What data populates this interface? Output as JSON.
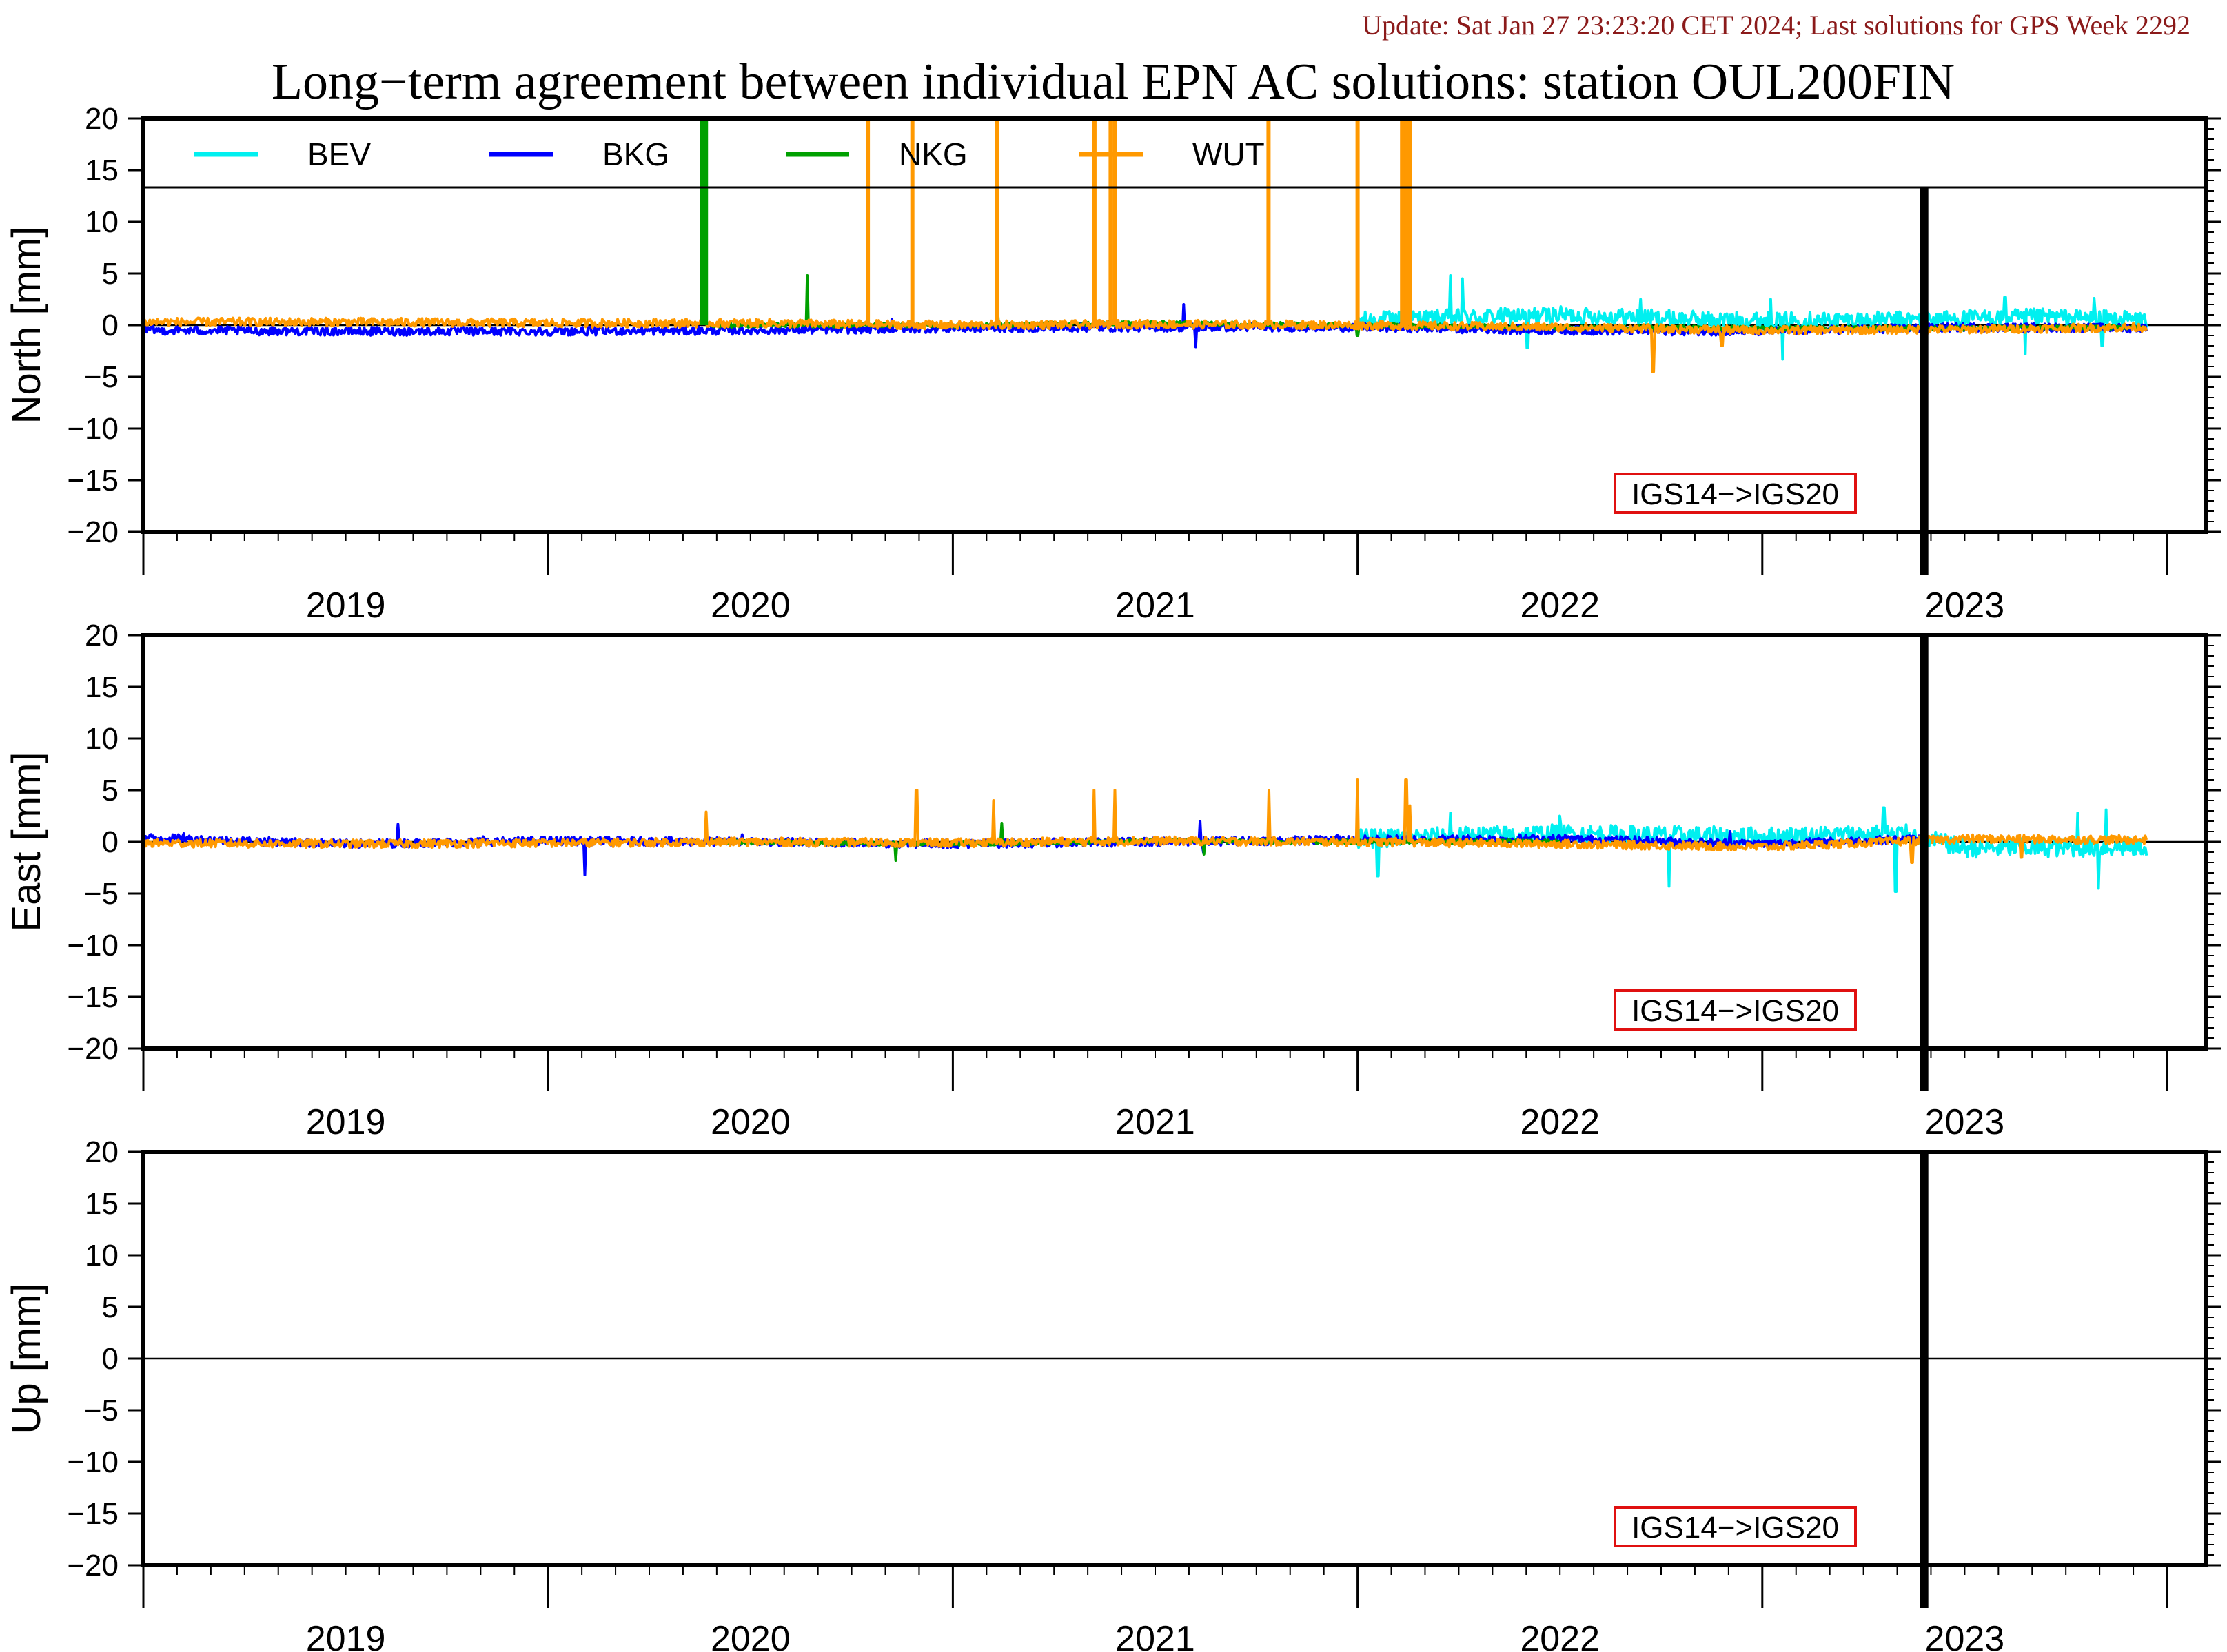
{
  "header": {
    "update": "Update: Sat Jan 27 23:23:20 CET 2024; Last solutions for GPS Week 2292",
    "title": "Long−term agreement between individual EPN AC solutions: station OUL200FIN"
  },
  "chart_data": [
    {
      "type": "line",
      "panel": "north",
      "ylabel": "North [mm]",
      "ylim": [
        -20,
        20
      ],
      "yticks": [
        20,
        15,
        10,
        5,
        0,
        -5,
        -10,
        -15,
        -20
      ],
      "ytick_labels": [
        "20",
        "15",
        "10",
        "5",
        "0",
        "−5",
        "−10",
        "−15",
        "−20"
      ],
      "xlim": [
        2018.5,
        2023.5
      ],
      "x_year_labels": [
        "2019",
        "2020",
        "2021",
        "2022",
        "2023"
      ],
      "zero_line": true,
      "reference_frame_change": {
        "x": 2022.9,
        "label": "IGS14−>IGS20"
      },
      "legend": {
        "placement": "top-left, inside plot, single row",
        "entries": [
          "BEV",
          "BKG",
          "NKG",
          "WUT"
        ]
      },
      "series": [
        {
          "name": "BEV",
          "color": "#00f0f0",
          "noise": 0.8,
          "x": [
            2021.5,
            2022.0,
            2022.4,
            2022.8,
            2023.2,
            2023.45
          ],
          "y": [
            0.5,
            1.0,
            0.5,
            0.5,
            0.8,
            0.5
          ],
          "spikes": [
            [
              2021.73,
              4.8
            ],
            [
              2021.76,
              4.5
            ],
            [
              2021.92,
              -2.2
            ],
            [
              2022.2,
              2.5
            ],
            [
              2022.52,
              2.5
            ],
            [
              2022.55,
              -3.3
            ],
            [
              2023.1,
              2.7
            ],
            [
              2023.15,
              -2.8
            ],
            [
              2023.32,
              2.6
            ],
            [
              2023.34,
              -2.0
            ]
          ]
        },
        {
          "name": "BKG",
          "color": "#0000ff",
          "noise": 0.4,
          "x": [
            2018.5,
            2019.0,
            2019.5,
            2020.0,
            2020.5,
            2021.0,
            2021.5,
            2022.0,
            2022.5,
            2023.0,
            2023.45
          ],
          "y": [
            -0.5,
            -0.6,
            -0.6,
            -0.5,
            -0.3,
            -0.2,
            -0.2,
            -0.5,
            -0.6,
            -0.2,
            -0.3
          ],
          "spikes": [
            [
              2020.35,
              0.6
            ],
            [
              2021.07,
              2.0
            ],
            [
              2021.1,
              -2.1
            ],
            [
              2022.9,
              2.5
            ]
          ]
        },
        {
          "name": "NKG",
          "color": "#00a000",
          "noise": 0.2,
          "x": [
            2019.9,
            2020.5,
            2021.0,
            2021.5,
            2022.0,
            2022.5,
            2023.0,
            2023.45
          ],
          "y": [
            0.0,
            0.0,
            0.2,
            0.0,
            -0.2,
            -0.3,
            -0.3,
            -0.2
          ],
          "spikes": [
            [
              2020.14,
              4.8
            ],
            [
              2020.61,
              1.8
            ],
            [
              2021.5,
              -1.0
            ]
          ]
        },
        {
          "name": "WUT",
          "color": "#ff9900",
          "noise": 0.4,
          "x": [
            2018.5,
            2019.0,
            2019.5,
            2020.0,
            2020.5,
            2021.0,
            2021.5,
            2022.0,
            2022.5,
            2023.0,
            2023.45
          ],
          "y": [
            0.3,
            0.3,
            0.2,
            0.2,
            0.0,
            0.1,
            0.0,
            -0.2,
            -0.5,
            -0.4,
            -0.2
          ],
          "spikes": [
            [
              2022.23,
              -4.5
            ],
            [
              2022.4,
              -2.0
            ]
          ]
        }
      ],
      "outliers": [
        {
          "series": "NKG",
          "x": 2019.88
        },
        {
          "series": "NKG",
          "x": 2019.89
        },
        {
          "series": "WUT",
          "x": 2020.29
        },
        {
          "series": "WUT",
          "x": 2020.4
        },
        {
          "series": "WUT",
          "x": 2020.61
        },
        {
          "series": "WUT",
          "x": 2020.85
        },
        {
          "series": "WUT",
          "x": 2020.89
        },
        {
          "series": "WUT",
          "x": 2020.9
        },
        {
          "series": "WUT",
          "x": 2021.28
        },
        {
          "series": "WUT",
          "x": 2021.5
        },
        {
          "series": "WUT",
          "x": 2021.61
        },
        {
          "series": "WUT",
          "x": 2021.615
        },
        {
          "series": "WUT",
          "x": 2021.62
        },
        {
          "series": "WUT",
          "x": 2021.625
        },
        {
          "series": "WUT",
          "x": 2021.63
        }
      ]
    },
    {
      "type": "line",
      "panel": "east",
      "ylabel": "East [mm]",
      "ylim": [
        -20,
        20
      ],
      "yticks": [
        20,
        15,
        10,
        5,
        0,
        -5,
        -10,
        -15,
        -20
      ],
      "ytick_labels": [
        "20",
        "15",
        "10",
        "5",
        "0",
        "−5",
        "−10",
        "−15",
        "−20"
      ],
      "xlim": [
        2018.5,
        2023.5
      ],
      "x_year_labels": [
        "2019",
        "2020",
        "2021",
        "2022",
        "2023"
      ],
      "zero_line": true,
      "reference_frame_change": {
        "x": 2022.9,
        "label": "IGS14−>IGS20"
      },
      "series": [
        {
          "name": "BEV",
          "color": "#00f0f0",
          "noise": 0.9,
          "x": [
            2021.5,
            2022.0,
            2022.5,
            2022.85,
            2023.0,
            2023.45
          ],
          "y": [
            0.3,
            0.8,
            0.5,
            0.8,
            -0.6,
            -0.5
          ],
          "spikes": [
            [
              2021.55,
              -3.3
            ],
            [
              2021.73,
              2.8
            ],
            [
              2022.0,
              2.5
            ],
            [
              2022.27,
              -4.3
            ],
            [
              2022.8,
              3.3
            ],
            [
              2022.83,
              -4.8
            ],
            [
              2023.28,
              2.8
            ],
            [
              2023.35,
              3.1
            ],
            [
              2023.33,
              -4.5
            ]
          ]
        },
        {
          "name": "BKG",
          "color": "#0000ff",
          "noise": 0.4,
          "x": [
            2018.5,
            2019.0,
            2019.5,
            2020.0,
            2020.5,
            2021.0,
            2021.5,
            2022.0,
            2022.5,
            2022.9
          ],
          "y": [
            0.4,
            -0.2,
            0.1,
            0.0,
            -0.2,
            0.0,
            0.2,
            0.3,
            -0.2,
            0.3
          ],
          "spikes": [
            [
              2018.6,
              0.8
            ],
            [
              2019.13,
              1.7
            ],
            [
              2019.34,
              0.5
            ],
            [
              2019.59,
              -3.2
            ],
            [
              2019.98,
              0.7
            ],
            [
              2021.11,
              2.0
            ],
            [
              2021.12,
              -1.0
            ],
            [
              2021.45,
              0.6
            ],
            [
              2022.42,
              1.0
            ]
          ]
        },
        {
          "name": "NKG",
          "color": "#00a000",
          "noise": 0.2,
          "x": [
            2019.9,
            2020.5,
            2021.0,
            2021.5,
            2022.0
          ],
          "y": [
            0.0,
            -0.2,
            0.1,
            0.0,
            0.0
          ],
          "spikes": [
            [
              2020.36,
              -1.8
            ],
            [
              2020.62,
              1.8
            ],
            [
              2021.12,
              -1.2
            ]
          ]
        },
        {
          "name": "WUT",
          "color": "#ff9900",
          "noise": 0.4,
          "x": [
            2018.5,
            2019.0,
            2019.5,
            2020.0,
            2020.5,
            2021.0,
            2021.5,
            2022.0,
            2022.5,
            2023.0,
            2023.45
          ],
          "y": [
            -0.1,
            -0.2,
            -0.1,
            0.0,
            -0.1,
            0.1,
            0.0,
            -0.2,
            -0.5,
            0.3,
            0.2
          ],
          "spikes": [
            [
              2019.89,
              2.9
            ],
            [
              2020.41,
              5.0
            ],
            [
              2020.6,
              4.0
            ],
            [
              2020.85,
              5.0
            ],
            [
              2020.9,
              5.0
            ],
            [
              2021.28,
              5.0
            ],
            [
              2021.5,
              6.0
            ],
            [
              2021.62,
              6.0
            ],
            [
              2021.63,
              3.5
            ],
            [
              2022.87,
              -2.0
            ],
            [
              2023.14,
              -1.5
            ]
          ]
        }
      ]
    },
    {
      "type": "line",
      "panel": "up",
      "ylabel": "Up [mm]",
      "ylim": [
        -20,
        20
      ],
      "yticks": [
        20,
        15,
        10,
        5,
        0,
        -5,
        -10,
        -15,
        -20
      ],
      "ytick_labels": [
        "20",
        "15",
        "10",
        "5",
        "0",
        "−5",
        "−10",
        "−15",
        "−20"
      ],
      "xlim": [
        2018.5,
        2023.5
      ],
      "x_year_labels": [
        "2019",
        "2020",
        "2021",
        "2022",
        "2023"
      ],
      "zero_line": true,
      "reference_frame_change": {
        "x": 2022.9,
        "label": "IGS14−>IGS20"
      },
      "series": []
    }
  ]
}
